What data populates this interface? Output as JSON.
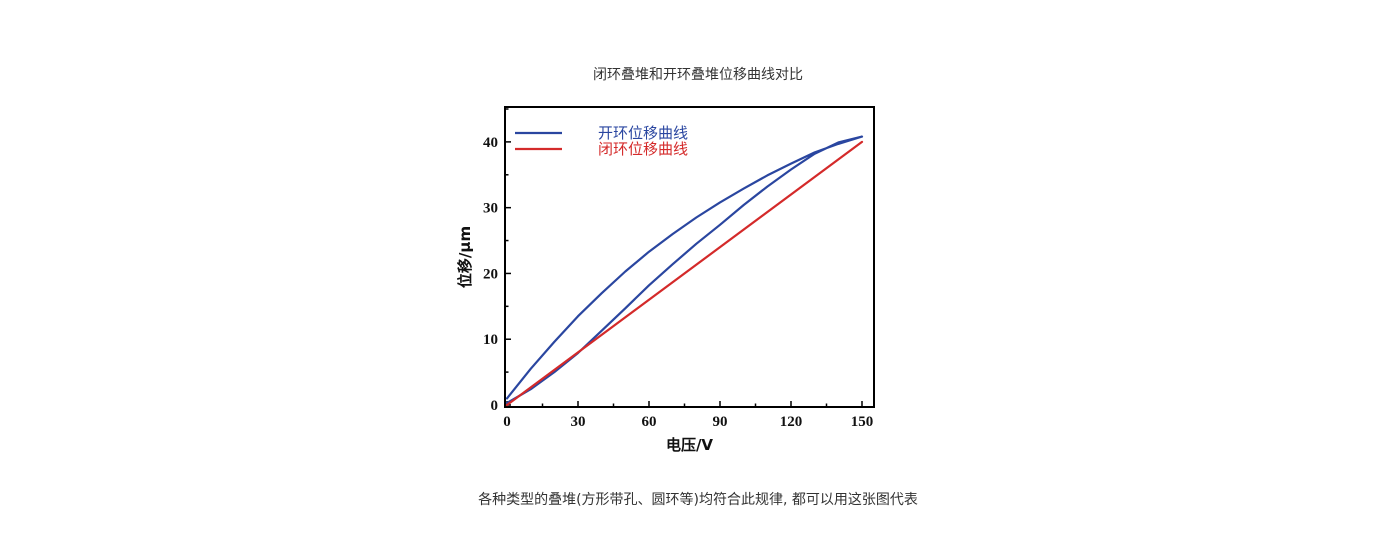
{
  "page": {
    "title": "闭环叠堆和开环叠堆位移曲线对比",
    "caption": "各种类型的叠堆(方形带孔、圆环等)均符合此规律, 都可以用这张图代表"
  },
  "chart_data": {
    "type": "line",
    "title": "闭环叠堆和开环叠堆位移曲线对比",
    "xlabel": "电压/V",
    "ylabel": "位移/μm",
    "xlim": [
      0,
      150
    ],
    "ylim": [
      0,
      45
    ],
    "xticks": [
      0,
      30,
      60,
      90,
      120,
      150
    ],
    "yticks": [
      0,
      10,
      20,
      30,
      40
    ],
    "legend_position": "top-left",
    "grid": false,
    "series": [
      {
        "name": "开环位移曲线",
        "color": "#2a46a0",
        "x": [
          0,
          10,
          20,
          30,
          40,
          50,
          60,
          70,
          80,
          90,
          100,
          110,
          120,
          130,
          140,
          150,
          140,
          130,
          120,
          110,
          100,
          90,
          80,
          70,
          60,
          50,
          40,
          30,
          20,
          10,
          0
        ],
        "values": [
          1,
          5.5,
          9.6,
          13.5,
          17,
          20.3,
          23.3,
          26,
          28.5,
          30.8,
          32.9,
          34.9,
          36.7,
          38.4,
          39.7,
          40.8,
          39.9,
          38.2,
          35.8,
          33.2,
          30.4,
          27.4,
          24.5,
          21.4,
          18.2,
          14.7,
          11.3,
          7.9,
          5,
          2.4,
          0.3
        ]
      },
      {
        "name": "闭环位移曲线",
        "color": "#d42a2a",
        "x": [
          0,
          150
        ],
        "values": [
          0,
          40
        ]
      }
    ]
  }
}
